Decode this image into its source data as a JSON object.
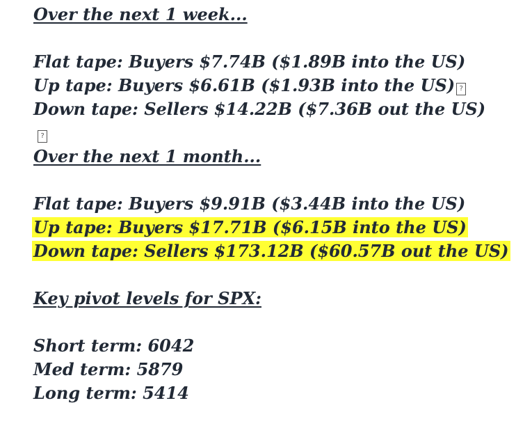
{
  "week": {
    "heading": "Over the next 1 week...",
    "flat": "Flat tape: Buyers $7.74B ($1.89B into the US)",
    "up": "Up tape: Buyers $6.61B ($1.93B into the US)",
    "down": "Down tape: Sellers $14.22B ($7.36B out the US)",
    "glyph": "?"
  },
  "month": {
    "heading": "Over the next 1 month...",
    "flat": "Flat tape: Buyers $9.91B ($3.44B into the US)",
    "up": "Up tape: Buyers $17.71B ($6.15B into the US)",
    "down": "Down tape: Sellers $173.12B ($60.57B out the US)"
  },
  "pivots": {
    "heading": "Key pivot levels for SPX:",
    "short": "Short term: 6042",
    "med": "Med term: 5879",
    "long": "Long term: 5414"
  },
  "colors": {
    "text": "#222a36",
    "highlight": "#ffff33"
  }
}
